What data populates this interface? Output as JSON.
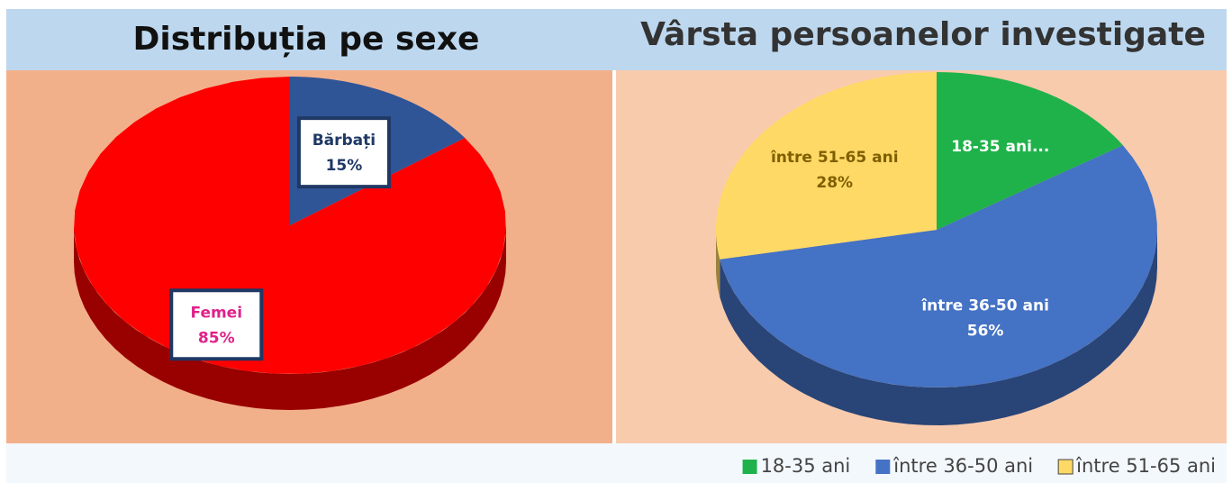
{
  "chart_data": [
    {
      "type": "pie",
      "title": "Distribuția pe sexe",
      "categories": [
        "Bărbați",
        "Femei"
      ],
      "values": [
        15,
        85
      ],
      "value_labels": [
        "15%",
        "85%"
      ],
      "colors": [
        "#2f5597",
        "#ff0000"
      ],
      "label_colors": [
        "#1f3864",
        "#e0218a"
      ],
      "label_boxes": true
    },
    {
      "type": "pie",
      "title": "Vârsta persoanelor investigate",
      "categories": [
        "18-35 ani",
        "între 36-50 ani",
        "între 51-65 ani"
      ],
      "values": [
        16,
        56,
        28
      ],
      "slice_labels": [
        "18-35 ani...",
        "între 36-50 ani",
        "între 51-65 ani"
      ],
      "value_labels": [
        null,
        "56%",
        "28%"
      ],
      "colors": [
        "#1fb24a",
        "#4472c4",
        "#ffd966"
      ],
      "label_colors": [
        "#ffffff",
        "#ffffff",
        "#7f5f00"
      ],
      "legend": "bottom-right"
    }
  ]
}
